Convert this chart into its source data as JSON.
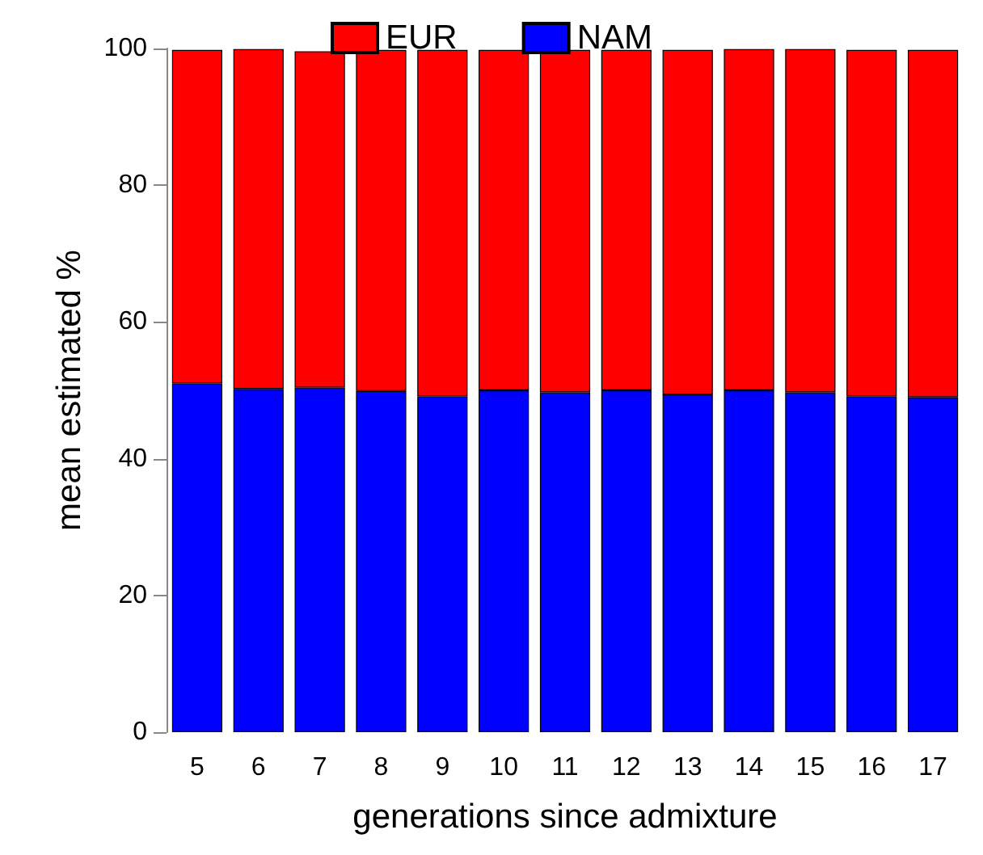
{
  "chart_data": {
    "type": "bar",
    "xlabel": "generations since admixture",
    "ylabel": "mean estimated %",
    "categories": [
      "5",
      "6",
      "7",
      "8",
      "9",
      "10",
      "11",
      "12",
      "13",
      "14",
      "15",
      "16",
      "17"
    ],
    "series": [
      {
        "name": "NAM",
        "color": "#0000ff",
        "values": [
          51.0,
          50.2,
          50.4,
          49.9,
          49.1,
          50.0,
          49.7,
          50.0,
          49.4,
          50.0,
          49.7,
          49.1,
          49.0
        ]
      },
      {
        "name": "EUR",
        "color": "#ff0000",
        "values": [
          48.8,
          49.7,
          49.2,
          49.9,
          50.7,
          49.8,
          50.1,
          49.8,
          50.4,
          49.9,
          50.2,
          50.7,
          50.8
        ]
      }
    ],
    "stacked": true,
    "ylim": [
      0,
      100
    ],
    "yticks": [
      0,
      20,
      40,
      60,
      80,
      100
    ],
    "grid": false,
    "legend": "top"
  }
}
